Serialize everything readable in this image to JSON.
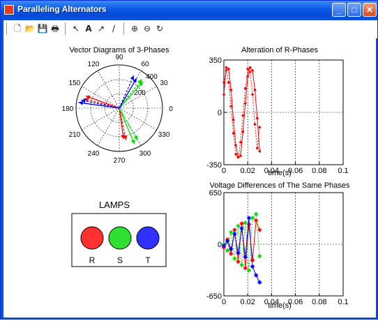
{
  "window": {
    "title": "Paralleling Alternators",
    "buttons": {
      "minimize": "_",
      "maximize": "□",
      "close": "✕"
    }
  },
  "toolbar": {
    "icons": [
      "new-file-icon",
      "open-file-icon",
      "save-icon",
      "print-icon",
      "select-arrow-icon",
      "insert-text-icon",
      "insert-arrow-icon",
      "insert-line-icon",
      "zoom-in-icon",
      "zoom-out-icon",
      "rotate-icon"
    ],
    "glyphs": [
      "🗋",
      "📂",
      "💾",
      "🖶",
      "↖",
      "A",
      "↗",
      "/",
      "⊕",
      "⊖",
      "↻"
    ]
  },
  "colors": {
    "red": "#ff0000",
    "green": "#00dd00",
    "blue": "#0000ff",
    "lamp_red": "#ff3030",
    "lamp_green": "#30e030",
    "lamp_blue": "#3030ff"
  },
  "chart_data": [
    {
      "type": "polar",
      "title": "Vector Diagrams of 3-Phases",
      "angle_ticks": [
        "0",
        "30",
        "60",
        "90",
        "120",
        "150",
        "180",
        "210",
        "240",
        "270",
        "300",
        "330"
      ],
      "radial_ticks": [
        "200",
        "400"
      ],
      "rmax": 400,
      "series": [
        {
          "color": "red",
          "angles": [
            160,
            165,
            278,
            282
          ],
          "radius": [
            330,
            340,
            290,
            300
          ]
        },
        {
          "color": "green",
          "angles": [
            48,
            52,
            293,
            300
          ],
          "radius": [
            330,
            340,
            360,
            340
          ]
        },
        {
          "color": "blue",
          "angles": [
            60,
            66,
            172,
            168
          ],
          "radius": [
            320,
            330,
            380,
            360
          ]
        }
      ]
    },
    {
      "type": "line",
      "title": "Alteration of R-Phases",
      "xlabel": "time(s)",
      "xlim": [
        0,
        0.1
      ],
      "ylim": [
        -350,
        350
      ],
      "xticks": [
        "0",
        "0.02",
        "0.04",
        "0.06",
        "0.08",
        "0.1"
      ],
      "yticks": [
        "350",
        "0",
        "-350"
      ],
      "series": [
        {
          "color": "red",
          "x": [
            0,
            0.002,
            0.004,
            0.006,
            0.008,
            0.01,
            0.012,
            0.014,
            0.016,
            0.018,
            0.02,
            0.022,
            0.024,
            0.026,
            0.028,
            0.03
          ],
          "y": [
            120,
            300,
            290,
            150,
            -50,
            -220,
            -300,
            -290,
            -130,
            60,
            240,
            300,
            280,
            150,
            -40,
            -260
          ]
        },
        {
          "color": "red",
          "x": [
            0,
            0.002,
            0.004,
            0.006,
            0.008,
            0.01,
            0.012,
            0.014,
            0.016,
            0.018,
            0.02,
            0.022,
            0.024,
            0.026,
            0.028,
            0.03
          ],
          "y": [
            200,
            280,
            200,
            40,
            -140,
            -280,
            -300,
            -200,
            -20,
            160,
            290,
            270,
            120,
            -80,
            -240,
            -100
          ]
        }
      ]
    },
    {
      "type": "line",
      "title": "Voltage Differences of The Same Phases",
      "xlabel": "time(s)",
      "xlim": [
        0,
        0.1
      ],
      "ylim": [
        -650,
        650
      ],
      "xticks": [
        "0",
        "0.02",
        "0.04",
        "0.06",
        "0.08",
        "0.1"
      ],
      "yticks": [
        "650",
        "0",
        "-650"
      ],
      "series": [
        {
          "color": "red",
          "x": [
            0,
            0.003,
            0.006,
            0.009,
            0.012,
            0.015,
            0.018,
            0.021,
            0.024,
            0.027,
            0.03
          ],
          "y": [
            -40,
            60,
            -120,
            180,
            -220,
            260,
            -300,
            250,
            -200,
            300,
            180
          ]
        },
        {
          "color": "green",
          "x": [
            0,
            0.003,
            0.006,
            0.009,
            0.012,
            0.015,
            0.018,
            0.021,
            0.024,
            0.027,
            0.03
          ],
          "y": [
            0,
            -80,
            150,
            -180,
            230,
            -260,
            270,
            -330,
            330,
            380,
            -150
          ]
        },
        {
          "color": "blue",
          "x": [
            0,
            0.003,
            0.006,
            0.009,
            0.012,
            0.015,
            0.018,
            0.021,
            0.024,
            0.027,
            0.03
          ],
          "y": [
            -20,
            40,
            -60,
            130,
            -110,
            200,
            -160,
            330,
            -280,
            -390,
            -480
          ]
        }
      ]
    }
  ],
  "lamps": {
    "title": "LAMPS",
    "labels": [
      "R",
      "S",
      "T"
    ]
  }
}
